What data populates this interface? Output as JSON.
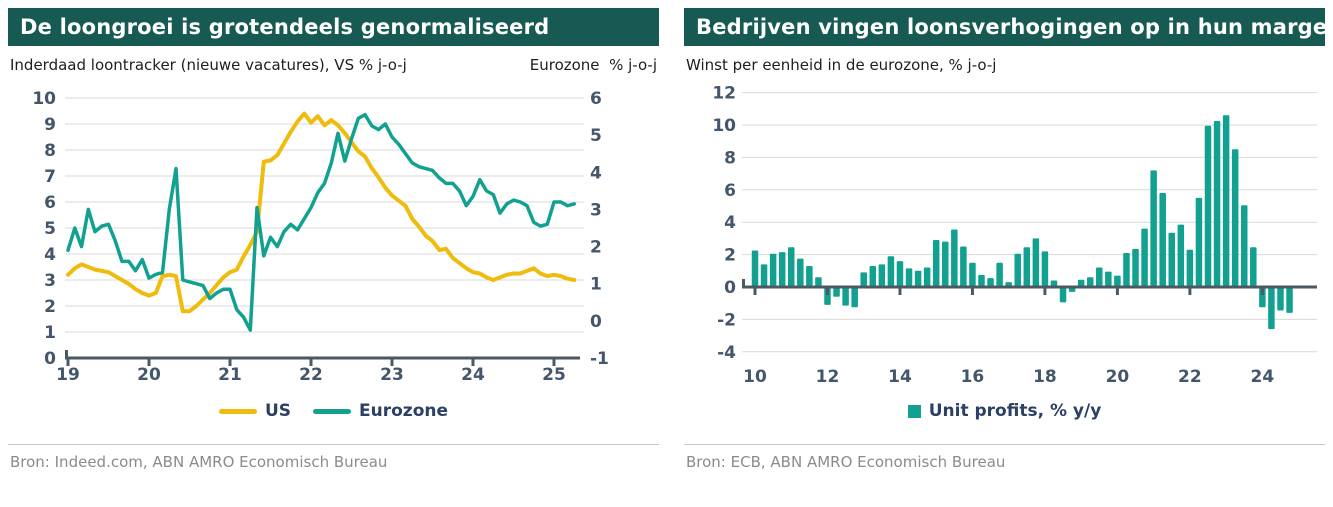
{
  "colors": {
    "header_bg": "#175A53",
    "header_text": "#FFFFFF",
    "us_yellow": "#EFBB0D",
    "eurozone_teal": "#12A091",
    "axis_text": "#43566B",
    "axis_line": "#4A5962",
    "grid": "#D9D9D9",
    "subtitle_text": "#1E1E1E",
    "legend_text": "#2C4066",
    "source_text": "#8B8B8B",
    "divider": "#C9C9C9"
  },
  "left_panel": {
    "title": "De loongroei is grotendeels genormaliseerd",
    "subtitle_left": "Inderdaad loontracker (nieuwe vacatures), VS % j-o-j",
    "subtitle_right": "Eurozone  % j-o-j",
    "legend": [
      {
        "label": "US",
        "color": "#EFBB0D"
      },
      {
        "label": "Eurozone",
        "color": "#12A091"
      }
    ],
    "source": "Bron: Indeed.com, ABN AMRO Economisch Bureau"
  },
  "right_panel": {
    "title": "Bedrijven vingen loonsverhogingen op in hun marges",
    "subtitle": "Winst per eenheid in de eurozone, % j-o-j",
    "legend_label": "Unit profits, % y/y",
    "source": "Bron: ECB, ABN AMRO Economisch Bureau"
  },
  "chart_data": [
    {
      "type": "line",
      "title": "De loongroei is grotendeels genormaliseerd",
      "subtitle": "Inderdaad loontracker (nieuwe vacatures), VS % j-o-j",
      "x_start_year": 2019,
      "x_interval": "monthly",
      "x_ticks": [
        19,
        20,
        21,
        22,
        23,
        24,
        25
      ],
      "left_axis": {
        "label": "VS % j-o-j",
        "lim": [
          0,
          10
        ],
        "ticks": [
          0,
          1,
          2,
          3,
          4,
          5,
          6,
          7,
          8,
          9,
          10
        ]
      },
      "right_axis": {
        "label": "Eurozone % j-o-j",
        "lim": [
          -1,
          6
        ],
        "ticks": [
          -1,
          0,
          1,
          2,
          3,
          4,
          5,
          6
        ]
      },
      "grid": true,
      "legend_position": "bottom",
      "series": [
        {
          "name": "US",
          "axis": "left",
          "color": "#EFBB0D",
          "values": [
            3.2,
            3.45,
            3.6,
            3.5,
            3.4,
            3.35,
            3.3,
            3.15,
            3.0,
            2.85,
            2.65,
            2.5,
            2.4,
            2.5,
            3.15,
            3.2,
            3.15,
            1.8,
            1.8,
            2.0,
            2.25,
            2.5,
            2.8,
            3.1,
            3.3,
            3.4,
            3.9,
            4.35,
            4.85,
            7.55,
            7.6,
            7.8,
            8.25,
            8.7,
            9.1,
            9.4,
            9.05,
            9.3,
            8.95,
            9.15,
            8.95,
            8.65,
            8.3,
            7.95,
            7.75,
            7.3,
            6.95,
            6.55,
            6.25,
            6.05,
            5.85,
            5.35,
            5.05,
            4.7,
            4.5,
            4.15,
            4.2,
            3.85,
            3.65,
            3.45,
            3.3,
            3.25,
            3.1,
            3.0,
            3.1,
            3.2,
            3.25,
            3.25,
            3.35,
            3.45,
            3.25,
            3.15,
            3.2,
            3.15,
            3.05,
            3.0
          ]
        },
        {
          "name": "Eurozone",
          "axis": "right",
          "color": "#12A091",
          "values": [
            1.9,
            2.5,
            2.0,
            3.0,
            2.4,
            2.55,
            2.6,
            2.15,
            1.6,
            1.6,
            1.35,
            1.65,
            1.15,
            1.25,
            1.3,
            3.0,
            4.1,
            1.1,
            1.05,
            1.0,
            0.95,
            0.6,
            0.75,
            0.85,
            0.85,
            0.3,
            0.1,
            -0.25,
            3.05,
            1.75,
            2.25,
            2.0,
            2.4,
            2.6,
            2.45,
            2.75,
            3.05,
            3.45,
            3.7,
            4.25,
            5.05,
            4.3,
            4.9,
            5.45,
            5.55,
            5.25,
            5.15,
            5.3,
            4.95,
            4.75,
            4.5,
            4.25,
            4.15,
            4.1,
            4.05,
            3.85,
            3.7,
            3.7,
            3.5,
            3.1,
            3.35,
            3.8,
            3.5,
            3.4,
            2.9,
            3.15,
            3.25,
            3.2,
            3.1,
            2.65,
            2.55,
            2.6,
            3.2,
            3.2,
            3.1,
            3.15
          ]
        }
      ]
    },
    {
      "type": "bar",
      "title": "Bedrijven vingen loonsverhogingen op in hun marges",
      "subtitle": "Winst per eenheid in de eurozone, % j-o-j",
      "legend": "Unit profits, % y/y",
      "bar_color": "#12A091",
      "x_start_year": 2010,
      "x_interval": "quarterly",
      "x_tick_years": [
        2010,
        2012,
        2014,
        2016,
        2018,
        2020,
        2022,
        2024
      ],
      "ylim": [
        -4,
        12
      ],
      "yticks": [
        -4,
        -2,
        0,
        2,
        4,
        6,
        8,
        10,
        12
      ],
      "grid": true,
      "values": [
        2.25,
        1.4,
        2.05,
        2.15,
        2.45,
        1.75,
        1.3,
        0.6,
        -1.1,
        -0.6,
        -1.15,
        -1.25,
        0.9,
        1.3,
        1.4,
        1.9,
        1.6,
        1.15,
        1.0,
        1.2,
        2.9,
        2.8,
        3.55,
        2.5,
        1.5,
        0.75,
        0.55,
        1.5,
        0.3,
        2.05,
        2.45,
        3.0,
        2.2,
        0.4,
        -0.95,
        -0.3,
        0.45,
        0.6,
        1.2,
        0.95,
        0.7,
        2.1,
        2.35,
        3.6,
        7.2,
        5.8,
        3.35,
        3.85,
        2.3,
        5.5,
        9.95,
        10.25,
        10.6,
        8.5,
        5.05,
        2.45,
        -1.25,
        -2.6,
        -1.45,
        -1.6
      ]
    }
  ]
}
